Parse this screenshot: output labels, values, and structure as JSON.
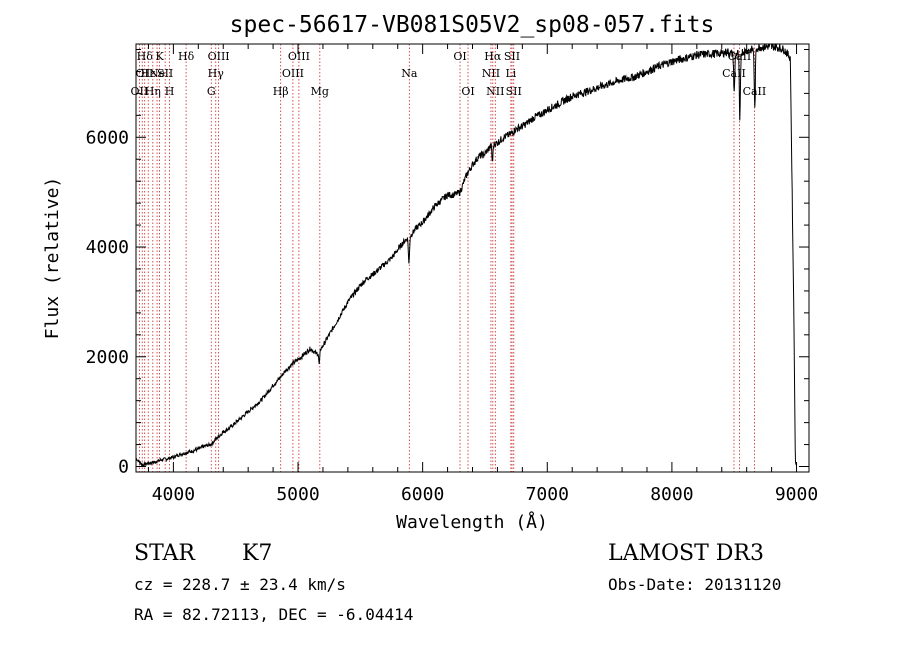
{
  "colors": {
    "axis": "#000000",
    "spectrum": "#000000",
    "line_marker": "#cc2222",
    "background": "#ffffff"
  },
  "chart_data": {
    "type": "line",
    "title": "spec-56617-VB081S05V2_sp08-057.fits",
    "xlabel": "Wavelength (Å)",
    "ylabel": "Flux (relative)",
    "xlim": [
      3700,
      9100
    ],
    "ylim": [
      -100,
      7700
    ],
    "x_ticks": [
      {
        "value": 4000,
        "label": "4000"
      },
      {
        "value": 5000,
        "label": "5000"
      },
      {
        "value": 6000,
        "label": "6000"
      },
      {
        "value": 7000,
        "label": "7000"
      },
      {
        "value": 8000,
        "label": "8000"
      },
      {
        "value": 9000,
        "label": "9000"
      }
    ],
    "y_ticks": [
      {
        "value": 0,
        "label": "0"
      },
      {
        "value": 2000,
        "label": "2000"
      },
      {
        "value": 4000,
        "label": "4000"
      },
      {
        "value": 6000,
        "label": "6000"
      }
    ],
    "series": [
      {
        "name": "spectrum",
        "points": [
          [
            3700,
            150
          ],
          [
            3750,
            30
          ],
          [
            3800,
            60
          ],
          [
            3850,
            80
          ],
          [
            3900,
            120
          ],
          [
            3950,
            140
          ],
          [
            4000,
            170
          ],
          [
            4050,
            220
          ],
          [
            4100,
            250
          ],
          [
            4150,
            280
          ],
          [
            4200,
            320
          ],
          [
            4250,
            370
          ],
          [
            4300,
            400
          ],
          [
            4350,
            520
          ],
          [
            4400,
            630
          ],
          [
            4450,
            700
          ],
          [
            4500,
            800
          ],
          [
            4550,
            900
          ],
          [
            4600,
            1000
          ],
          [
            4650,
            1100
          ],
          [
            4700,
            1200
          ],
          [
            4750,
            1330
          ],
          [
            4800,
            1480
          ],
          [
            4850,
            1600
          ],
          [
            4900,
            1750
          ],
          [
            4950,
            1860
          ],
          [
            5000,
            1950
          ],
          [
            5050,
            2050
          ],
          [
            5100,
            2150
          ],
          [
            5150,
            2050
          ],
          [
            5200,
            2200
          ],
          [
            5250,
            2400
          ],
          [
            5300,
            2600
          ],
          [
            5350,
            2800
          ],
          [
            5400,
            3000
          ],
          [
            5450,
            3150
          ],
          [
            5500,
            3300
          ],
          [
            5550,
            3420
          ],
          [
            5600,
            3500
          ],
          [
            5650,
            3600
          ],
          [
            5700,
            3700
          ],
          [
            5750,
            3800
          ],
          [
            5800,
            3950
          ],
          [
            5850,
            4100
          ],
          [
            5900,
            4200
          ],
          [
            5950,
            4350
          ],
          [
            6000,
            4450
          ],
          [
            6050,
            4600
          ],
          [
            6100,
            4750
          ],
          [
            6150,
            4850
          ],
          [
            6200,
            4950
          ],
          [
            6250,
            4950
          ],
          [
            6300,
            5000
          ],
          [
            6350,
            5300
          ],
          [
            6400,
            5500
          ],
          [
            6450,
            5650
          ],
          [
            6500,
            5700
          ],
          [
            6550,
            5850
          ],
          [
            6600,
            5900
          ],
          [
            6650,
            6000
          ],
          [
            6700,
            6050
          ],
          [
            6750,
            6150
          ],
          [
            6800,
            6200
          ],
          [
            6850,
            6280
          ],
          [
            6900,
            6370
          ],
          [
            6950,
            6420
          ],
          [
            7000,
            6500
          ],
          [
            7100,
            6620
          ],
          [
            7200,
            6750
          ],
          [
            7300,
            6820
          ],
          [
            7400,
            6900
          ],
          [
            7500,
            6980
          ],
          [
            7600,
            7050
          ],
          [
            7700,
            7100
          ],
          [
            7800,
            7200
          ],
          [
            7900,
            7300
          ],
          [
            8000,
            7380
          ],
          [
            8100,
            7440
          ],
          [
            8200,
            7500
          ],
          [
            8300,
            7520
          ],
          [
            8400,
            7530
          ],
          [
            8450,
            7560
          ],
          [
            8500,
            7500
          ],
          [
            8550,
            7550
          ],
          [
            8600,
            7580
          ],
          [
            8650,
            7600
          ],
          [
            8700,
            7640
          ],
          [
            8750,
            7650
          ],
          [
            8800,
            7660
          ],
          [
            8850,
            7640
          ],
          [
            8900,
            7600
          ],
          [
            8950,
            7450
          ],
          [
            8980,
            2500
          ],
          [
            8990,
            100
          ],
          [
            9000,
            0
          ]
        ]
      }
    ],
    "absorption_dips": [
      {
        "x": 5170,
        "depth": 250
      },
      {
        "x": 5890,
        "depth": 500
      },
      {
        "x": 6560,
        "depth": 300
      },
      {
        "x": 8500,
        "depth": 700
      },
      {
        "x": 8545,
        "depth": 1300
      },
      {
        "x": 8665,
        "depth": 1100
      }
    ],
    "line_markers": [
      {
        "x": 3727,
        "labels": [
          "OII"
        ],
        "row": 2
      },
      {
        "x": 3750,
        "labels": [
          "OI"
        ],
        "row": 1
      },
      {
        "x": 3770,
        "labels": [
          "Hδ"
        ],
        "row": 0
      },
      {
        "x": 3798,
        "labels": [
          "Hε"
        ],
        "row": 1
      },
      {
        "x": 3835,
        "labels": [
          "Hη"
        ],
        "row": 2
      },
      {
        "x": 3869,
        "labels": [
          "Ne"
        ],
        "row": 1
      },
      {
        "x": 3889,
        "labels": [
          "K"
        ],
        "row": 0
      },
      {
        "x": 3934,
        "labels": [
          "SII"
        ],
        "row": 1
      },
      {
        "x": 3969,
        "labels": [
          "H"
        ],
        "row": 2
      },
      {
        "x": 4102,
        "labels": [
          "Hδ"
        ],
        "row": 0
      },
      {
        "x": 4304,
        "labels": [
          "G"
        ],
        "row": 2
      },
      {
        "x": 4340,
        "labels": [
          "Hγ"
        ],
        "row": 1
      },
      {
        "x": 4363,
        "labels": [
          "OIII"
        ],
        "row": 0
      },
      {
        "x": 4861,
        "labels": [
          "Hβ"
        ],
        "row": 2
      },
      {
        "x": 4959,
        "labels": [
          "OIII"
        ],
        "row": 1
      },
      {
        "x": 5007,
        "labels": [
          "OIII"
        ],
        "row": 0
      },
      {
        "x": 5175,
        "labels": [
          "Mg"
        ],
        "row": 2
      },
      {
        "x": 5893,
        "labels": [
          "Na"
        ],
        "row": 1
      },
      {
        "x": 6300,
        "labels": [
          "OI"
        ],
        "row": 0
      },
      {
        "x": 6364,
        "labels": [
          "OI"
        ],
        "row": 2
      },
      {
        "x": 6548,
        "labels": [
          "NII"
        ],
        "row": 1
      },
      {
        "x": 6563,
        "labels": [
          "Hα"
        ],
        "row": 0
      },
      {
        "x": 6583,
        "labels": [
          "NII"
        ],
        "row": 2
      },
      {
        "x": 6708,
        "labels": [
          "Li"
        ],
        "row": 1
      },
      {
        "x": 6717,
        "labels": [
          "SII"
        ],
        "row": 0
      },
      {
        "x": 6731,
        "labels": [
          "SII"
        ],
        "row": 2
      },
      {
        "x": 8498,
        "labels": [
          "CaII"
        ],
        "row": 1
      },
      {
        "x": 8542,
        "labels": [
          "CaII"
        ],
        "row": 0
      },
      {
        "x": 8662,
        "labels": [
          "CaII"
        ],
        "row": 2
      }
    ]
  },
  "info": {
    "object_class": "STAR",
    "subclass": "K7",
    "survey": "LAMOST DR3",
    "redshift": "cz = 228.7 ± 23.4 km/s",
    "obs_date": "Obs-Date: 20131120",
    "coords": "RA =  82.72113, DEC =  -6.04414"
  }
}
